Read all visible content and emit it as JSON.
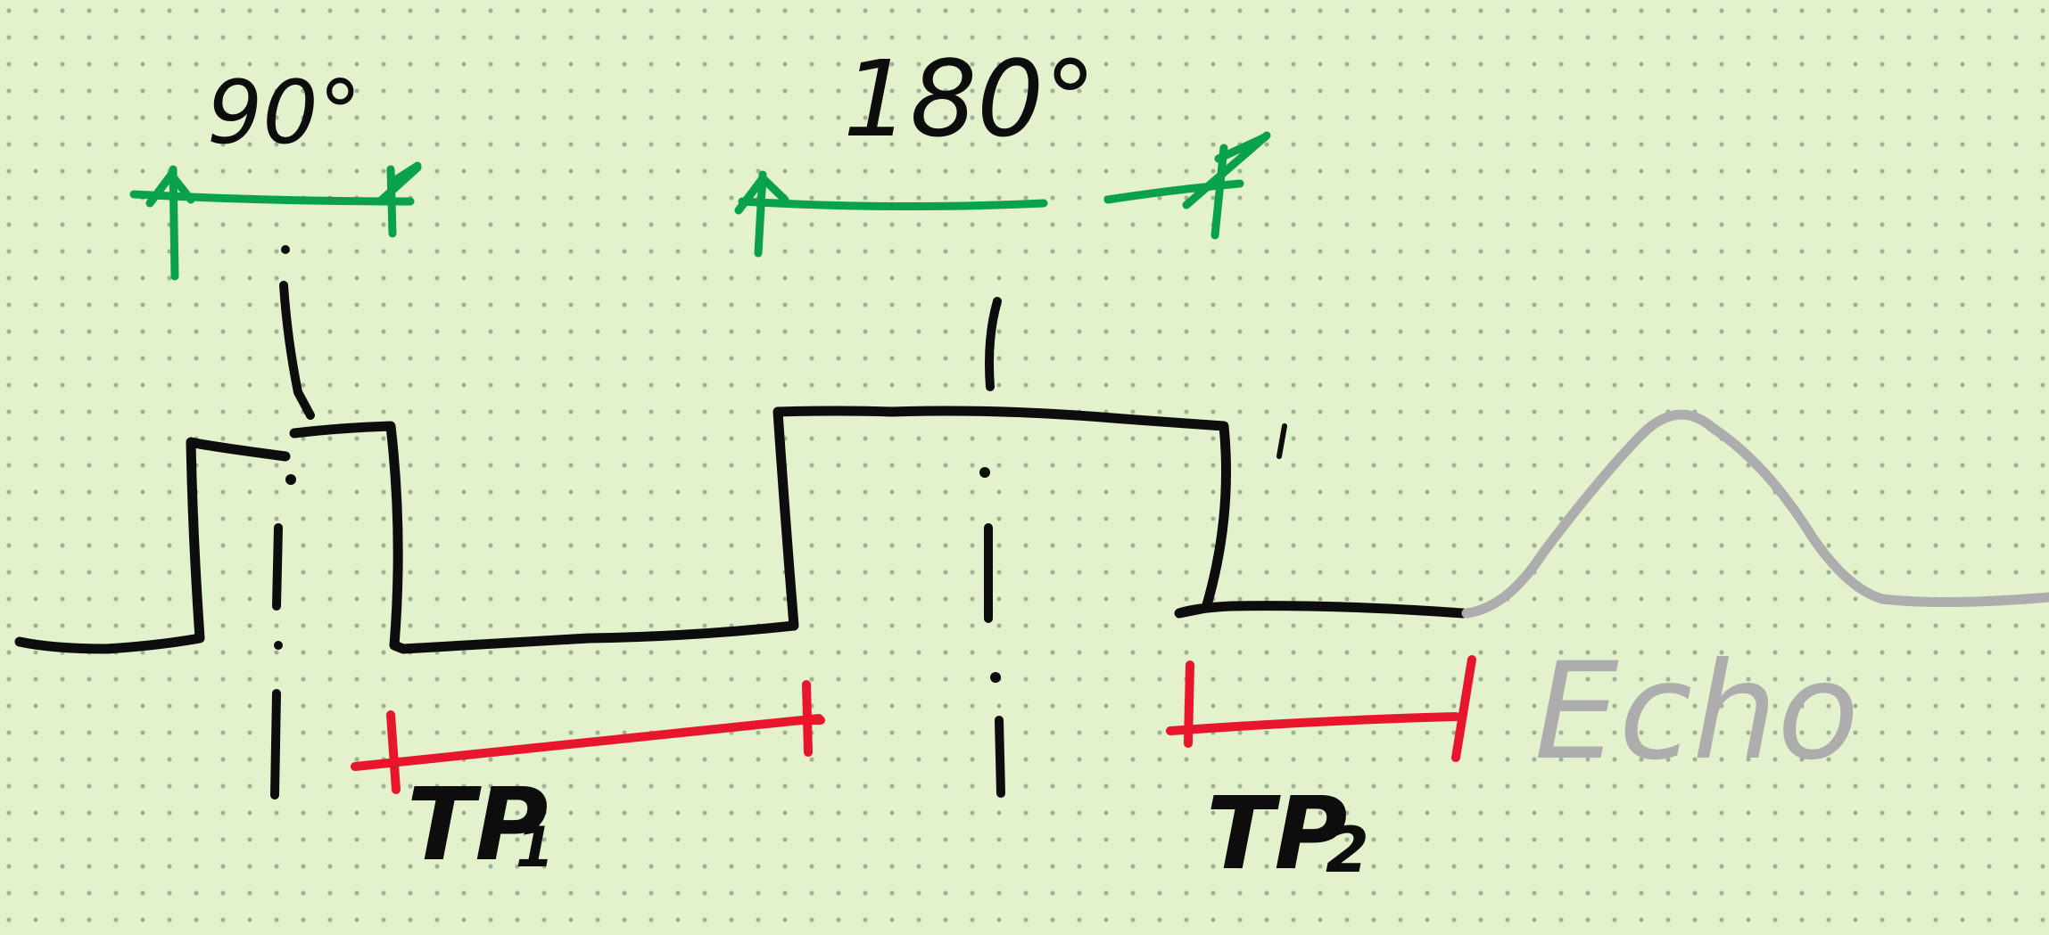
{
  "colors": {
    "background": "#e3f1cc",
    "dot_grid": "#9fb397",
    "ink": "#0d0d0d",
    "green": "#0aa14c",
    "red": "#e8162d",
    "grey": "#adadad"
  },
  "labels": {
    "angle_left": "90°",
    "angle_middle": "180°",
    "tp1_main": "TP",
    "tp1_sub": "1",
    "tp2_main": "TP",
    "tp2_sub": "2",
    "echo": "Echo"
  },
  "icons": {
    "green_arrow": "double-arrow-icon",
    "red_bracket": "interval-bracket-icon"
  }
}
